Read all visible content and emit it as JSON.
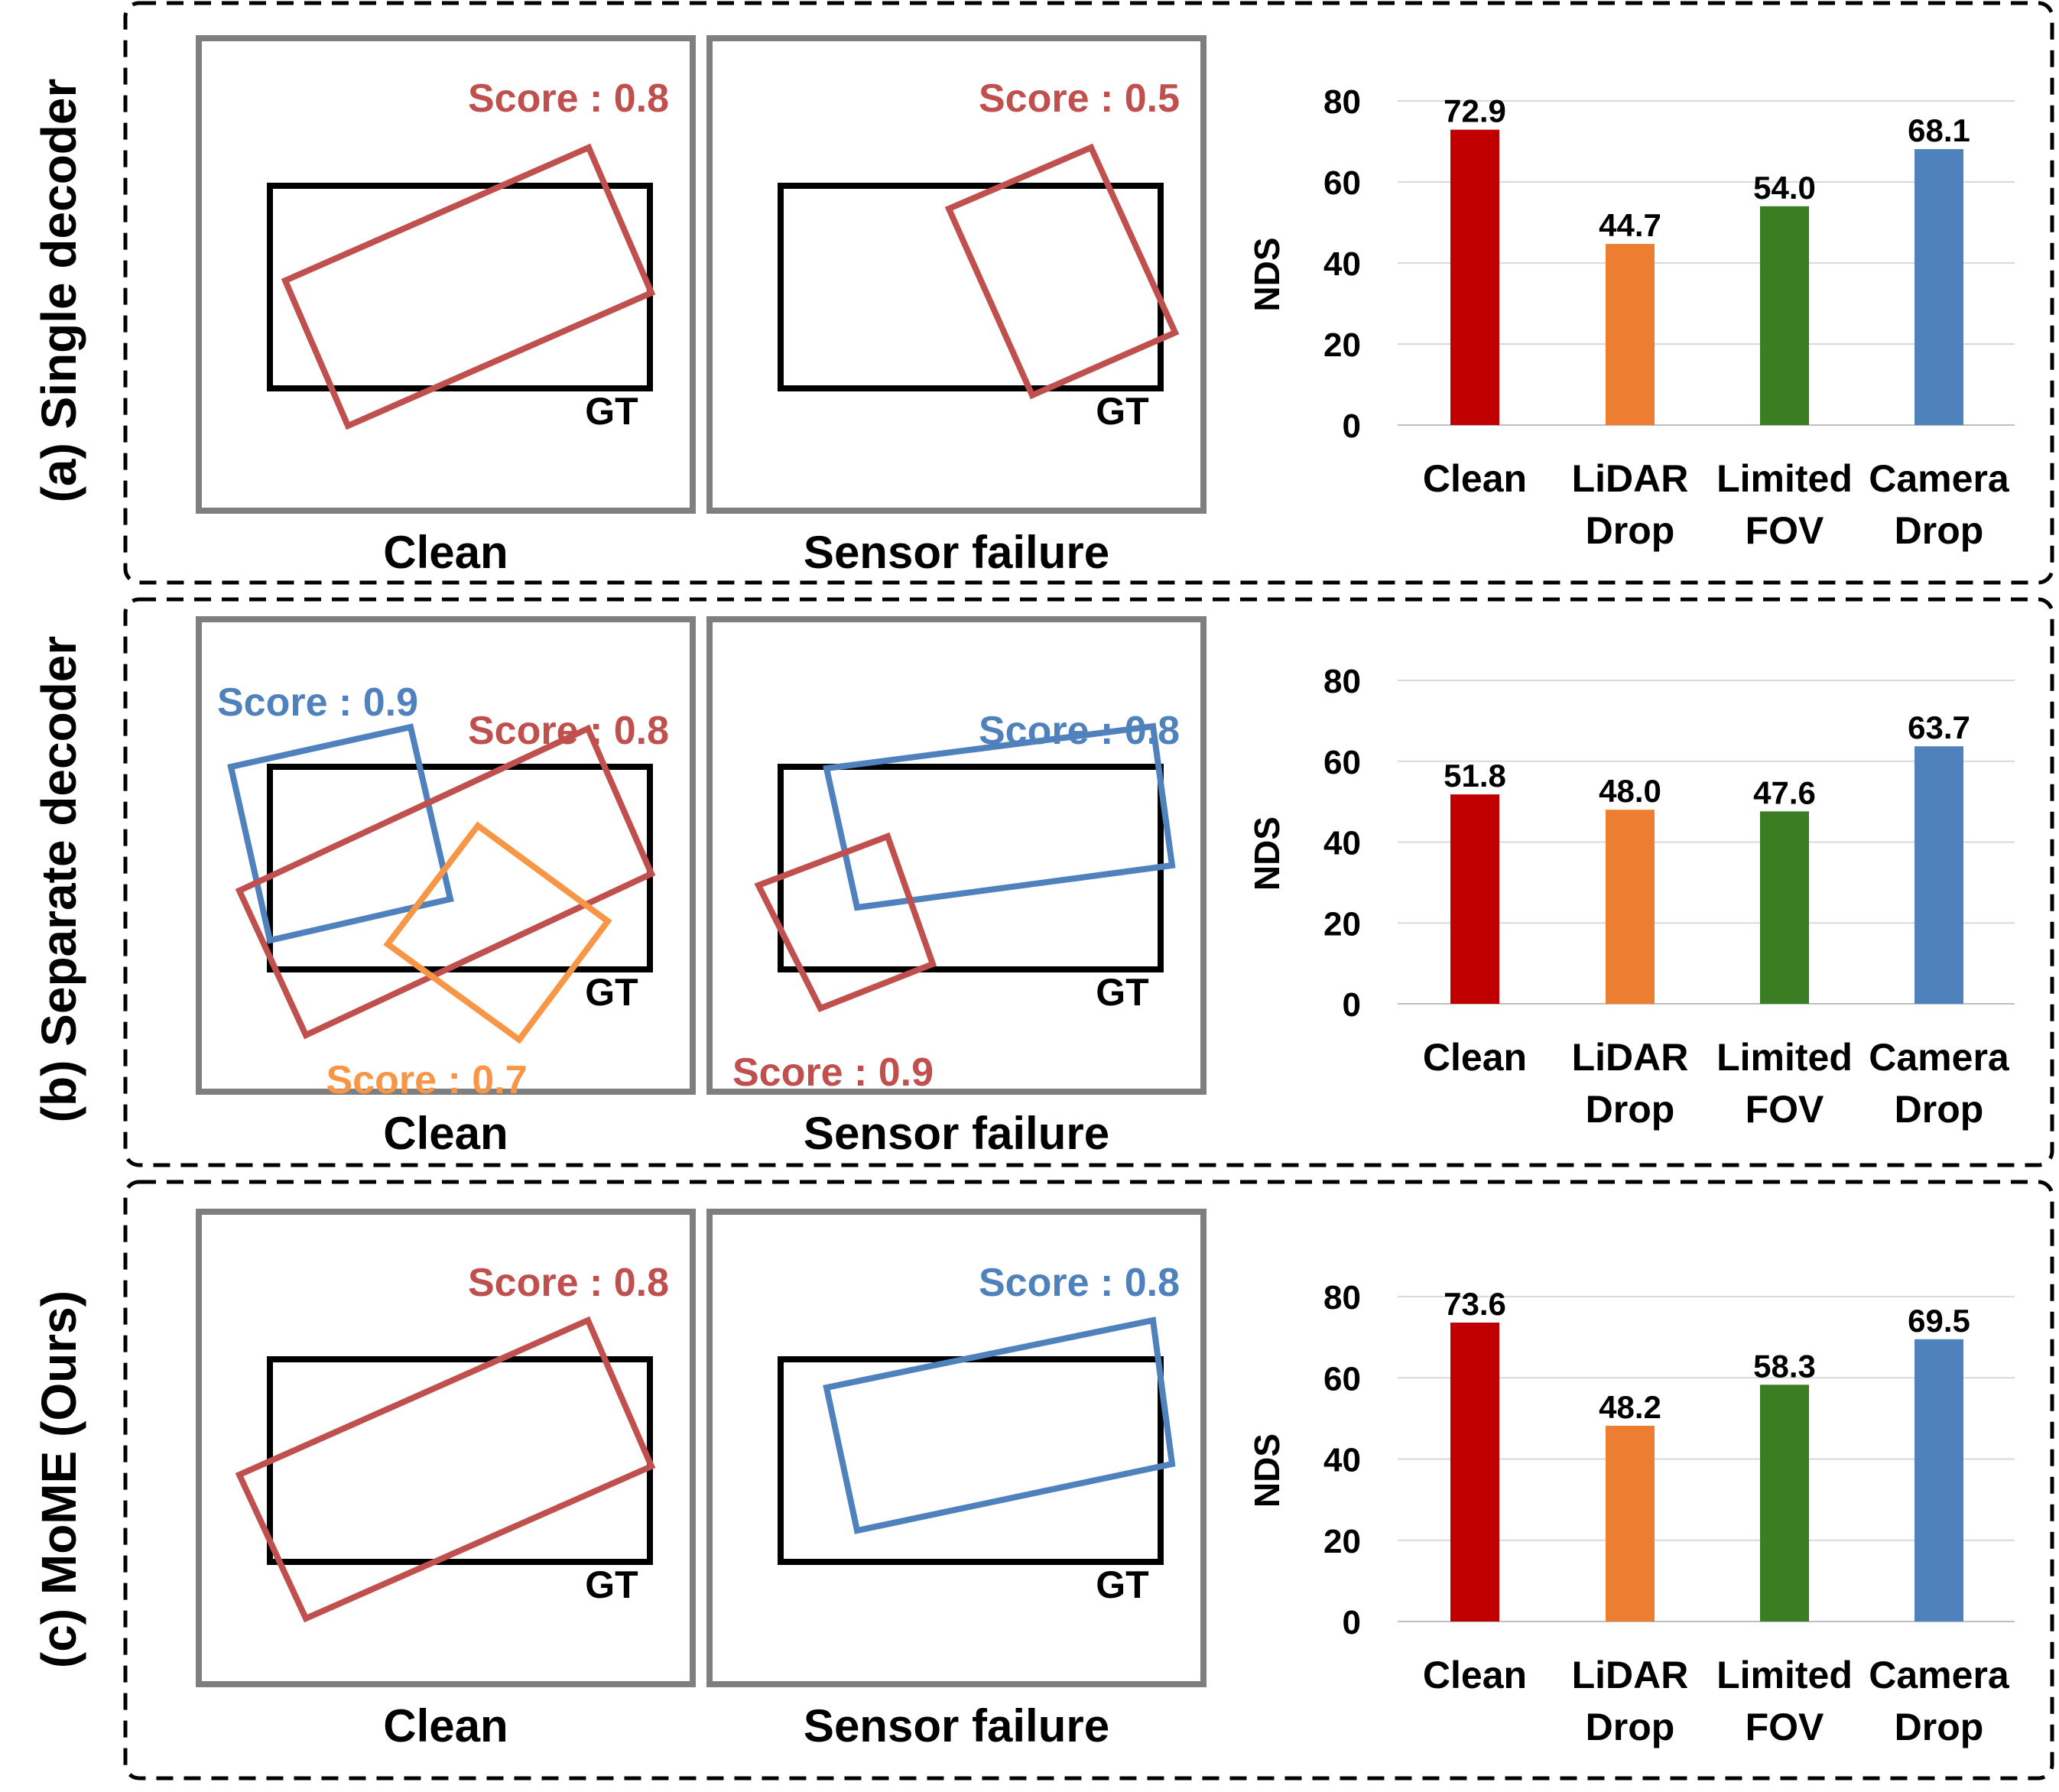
{
  "colors": {
    "red": "#C00000",
    "orange": "#ED7D31",
    "green": "#3A7D22",
    "blue": "#4F81BD",
    "box_red": "#C0504D",
    "box_blue": "#4F81BD",
    "box_orange": "#F79646",
    "panel_gray": "#7F7F7F",
    "gt_black": "#000000",
    "grid": "#D9D9D9"
  },
  "rows": [
    {
      "label": "(a) Single decoder",
      "scenes": [
        {
          "caption": "Clean",
          "gt_label": "GT",
          "boxes": [
            {
              "color": "red",
              "score": "Score : 0.8"
            }
          ]
        },
        {
          "caption": "Sensor failure",
          "gt_label": "GT",
          "boxes": [
            {
              "color": "red",
              "score": "Score : 0.5"
            }
          ]
        }
      ]
    },
    {
      "label": "(b) Separate decoder",
      "scenes": [
        {
          "caption": "Clean",
          "gt_label": "GT",
          "boxes": [
            {
              "color": "blue",
              "score": "Score : 0.9"
            },
            {
              "color": "red",
              "score": "Score : 0.8"
            },
            {
              "color": "orange",
              "score": "Score : 0.7"
            }
          ]
        },
        {
          "caption": "Sensor failure",
          "gt_label": "GT",
          "boxes": [
            {
              "color": "blue",
              "score": "Score : 0.8"
            },
            {
              "color": "red",
              "score": "Score : 0.9"
            }
          ]
        }
      ]
    },
    {
      "label": "(c) MoME (Ours)",
      "scenes": [
        {
          "caption": "Clean",
          "gt_label": "GT",
          "boxes": [
            {
              "color": "red",
              "score": "Score : 0.8"
            }
          ]
        },
        {
          "caption": "Sensor failure",
          "gt_label": "GT",
          "boxes": [
            {
              "color": "blue",
              "score": "Score : 0.8"
            }
          ]
        }
      ]
    }
  ],
  "chart_data": [
    {
      "type": "bar",
      "title": "",
      "xlabel": "",
      "ylabel": "NDS",
      "ylim": [
        0,
        80
      ],
      "yticks": [
        0,
        20,
        40,
        60,
        80
      ],
      "grid": true,
      "categories": [
        "Clean",
        "LiDAR Drop",
        "Limited FOV",
        "Camera Drop"
      ],
      "category_lines": [
        [
          "Clean"
        ],
        [
          "LiDAR",
          "Drop"
        ],
        [
          "Limited",
          "FOV"
        ],
        [
          "Camera",
          "Drop"
        ]
      ],
      "values": [
        72.9,
        44.7,
        54.0,
        68.1
      ],
      "value_labels": [
        "72.9",
        "44.7",
        "54.0",
        "68.1"
      ],
      "bar_colors": [
        "red",
        "orange",
        "green",
        "blue"
      ]
    },
    {
      "type": "bar",
      "title": "",
      "xlabel": "",
      "ylabel": "NDS",
      "ylim": [
        0,
        80
      ],
      "yticks": [
        0,
        20,
        40,
        60,
        80
      ],
      "grid": true,
      "categories": [
        "Clean",
        "LiDAR Drop",
        "Limited FOV",
        "Camera Drop"
      ],
      "category_lines": [
        [
          "Clean"
        ],
        [
          "LiDAR",
          "Drop"
        ],
        [
          "Limited",
          "FOV"
        ],
        [
          "Camera",
          "Drop"
        ]
      ],
      "values": [
        51.8,
        48.0,
        47.6,
        63.7
      ],
      "value_labels": [
        "51.8",
        "48.0",
        "47.6",
        "63.7"
      ],
      "bar_colors": [
        "red",
        "orange",
        "green",
        "blue"
      ]
    },
    {
      "type": "bar",
      "title": "",
      "xlabel": "",
      "ylabel": "NDS",
      "ylim": [
        0,
        80
      ],
      "yticks": [
        0,
        20,
        40,
        60,
        80
      ],
      "grid": true,
      "categories": [
        "Clean",
        "LiDAR Drop",
        "Limited FOV",
        "Camera Drop"
      ],
      "category_lines": [
        [
          "Clean"
        ],
        [
          "LiDAR",
          "Drop"
        ],
        [
          "Limited",
          "FOV"
        ],
        [
          "Camera",
          "Drop"
        ]
      ],
      "values": [
        73.6,
        48.2,
        58.3,
        69.5
      ],
      "value_labels": [
        "73.6",
        "48.2",
        "58.3",
        "69.5"
      ],
      "bar_colors": [
        "red",
        "orange",
        "green",
        "blue"
      ]
    }
  ]
}
